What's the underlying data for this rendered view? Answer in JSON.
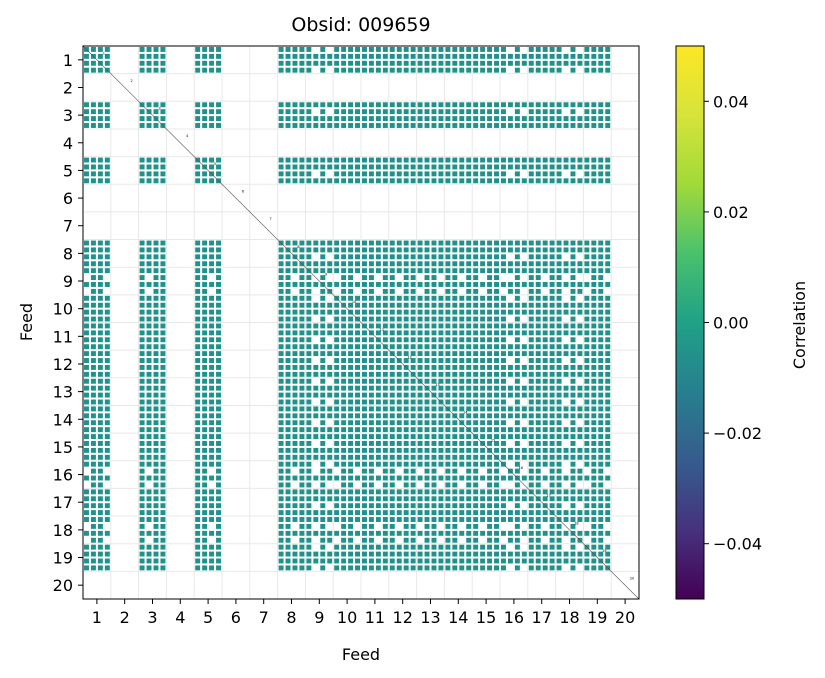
{
  "chart_data": {
    "type": "heatmap",
    "title": "Obsid: 009659",
    "xlabel": "Feed",
    "ylabel": "Feed",
    "x_ticks": [
      "1",
      "2",
      "3",
      "4",
      "5",
      "6",
      "7",
      "8",
      "9",
      "10",
      "11",
      "12",
      "13",
      "14",
      "15",
      "16",
      "17",
      "18",
      "19",
      "20"
    ],
    "y_ticks": [
      "1",
      "2",
      "3",
      "4",
      "5",
      "6",
      "7",
      "8",
      "9",
      "10",
      "11",
      "12",
      "13",
      "14",
      "15",
      "16",
      "17",
      "18",
      "19",
      "20"
    ],
    "feeds": [
      1,
      2,
      3,
      4,
      5,
      6,
      7,
      8,
      9,
      10,
      11,
      12,
      13,
      14,
      15,
      16,
      17,
      18,
      19,
      20
    ],
    "active_feeds": [
      1,
      3,
      5,
      8,
      9,
      10,
      11,
      12,
      13,
      14,
      15,
      16,
      17,
      18,
      19
    ],
    "partial_feeds": [
      9,
      16,
      18
    ],
    "empty_feeds": [
      2,
      4,
      6,
      7,
      20
    ],
    "cell_value": 0.0,
    "colorbar": {
      "label": "Correlation",
      "ticks": [
        "0.04",
        "0.02",
        "0.00",
        "−0.02",
        "−0.04"
      ],
      "tick_values": [
        0.04,
        0.02,
        0.0,
        -0.02,
        -0.04
      ],
      "range": [
        -0.05,
        0.05
      ],
      "colormap": "viridis"
    },
    "colors": {
      "cell": "#21918c",
      "grid": "#e8e8e8"
    }
  }
}
